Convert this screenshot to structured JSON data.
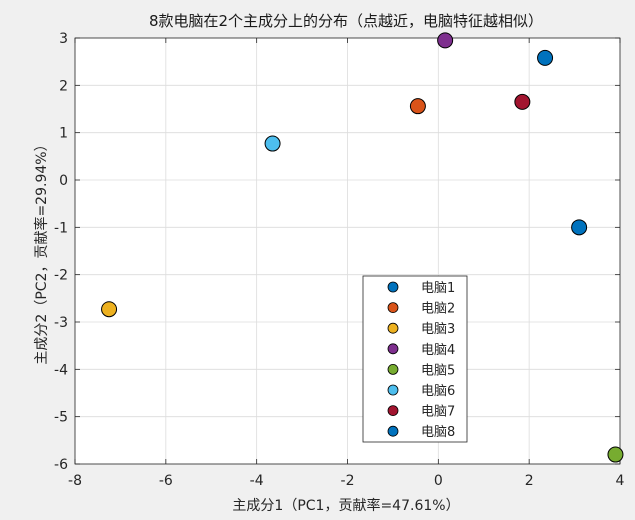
{
  "chart_data": {
    "type": "scatter",
    "title": "8款电脑在2个主成分上的分布（点越近，电脑特征越相似）",
    "xlabel": "主成分1（PC1，贡献率=47.61%）",
    "ylabel": "主成分2（PC2，贡献率=29.94%）",
    "xlim": [
      -8,
      4
    ],
    "ylim": [
      -6,
      3
    ],
    "xticks": [
      "-8",
      "-6",
      "-4",
      "-2",
      "0",
      "2",
      "4"
    ],
    "xtick_values": [
      -8,
      -6,
      -4,
      -2,
      0,
      2,
      4
    ],
    "yticks": [
      "3",
      "2",
      "1",
      "0",
      "-1",
      "-2",
      "-3",
      "-4",
      "-5",
      "-6"
    ],
    "ytick_values": [
      3,
      2,
      1,
      0,
      -1,
      -2,
      -3,
      -4,
      -5,
      -6
    ],
    "grid": true,
    "legend_position": "lower-center",
    "series": [
      {
        "name": "电脑1",
        "color": "#0072bd",
        "x": 3.1,
        "y": -1.0
      },
      {
        "name": "电脑2",
        "color": "#d95319",
        "x": -0.45,
        "y": 1.56
      },
      {
        "name": "电脑3",
        "color": "#edb120",
        "x": -7.25,
        "y": -2.73
      },
      {
        "name": "电脑4",
        "color": "#7e2f8e",
        "x": 0.15,
        "y": 2.95
      },
      {
        "name": "电脑5",
        "color": "#77ac30",
        "x": 3.9,
        "y": -5.8
      },
      {
        "name": "电脑6",
        "color": "#4dbeee",
        "x": -3.65,
        "y": 0.77
      },
      {
        "name": "电脑7",
        "color": "#a2142f",
        "x": 1.85,
        "y": 1.65
      },
      {
        "name": "电脑8",
        "color": "#0072bd",
        "x": 2.35,
        "y": 2.58
      }
    ]
  }
}
